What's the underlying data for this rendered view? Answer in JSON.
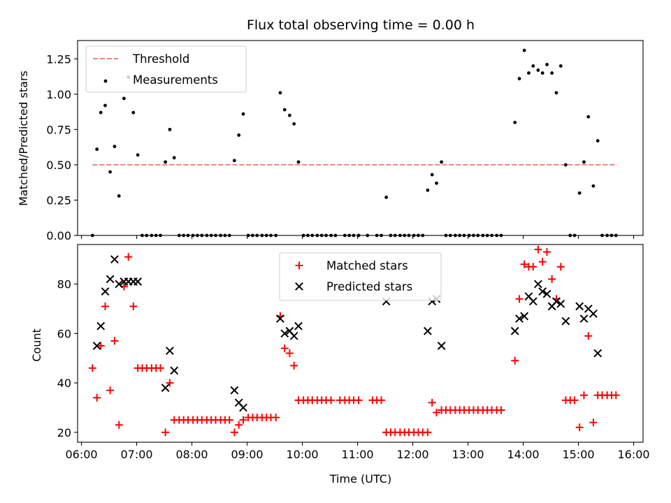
{
  "chart_data": [
    {
      "type": "scatter",
      "title": "Flux total observing time = 0.00 h",
      "ylabel": "Matched/Predicted stars",
      "xlabel": "",
      "xlim": [
        5.93,
        16.17
      ],
      "ylim": [
        0,
        1.38
      ],
      "yticks": [
        0.0,
        0.25,
        0.5,
        0.75,
        1.0,
        1.25
      ],
      "ytick_labels": [
        "0.00",
        "0.25",
        "0.50",
        "0.75",
        "1.00",
        "1.25"
      ],
      "grid": false,
      "legend_position": "top-left",
      "series": [
        {
          "name": "Threshold",
          "style": "dashed-line",
          "color": "#f08080",
          "x": [
            6.2,
            15.7
          ],
          "y": [
            0.5,
            0.5
          ]
        },
        {
          "name": "Measurements",
          "style": "dot",
          "color": "#000000",
          "points": [
            [
              6.2,
              0
            ],
            [
              6.28,
              0.61
            ],
            [
              6.35,
              0.87
            ],
            [
              6.43,
              0.92
            ],
            [
              6.52,
              0.45
            ],
            [
              6.6,
              0.63
            ],
            [
              6.68,
              0.28
            ],
            [
              6.77,
              0.97
            ],
            [
              6.85,
              1.12
            ],
            [
              6.94,
              0.87
            ],
            [
              7.02,
              0.57
            ],
            [
              7.1,
              0
            ],
            [
              7.18,
              0
            ],
            [
              7.27,
              0
            ],
            [
              7.35,
              0
            ],
            [
              7.43,
              0
            ],
            [
              7.52,
              0.52
            ],
            [
              7.6,
              0.75
            ],
            [
              7.68,
              0.55
            ],
            [
              7.77,
              0
            ],
            [
              7.85,
              0
            ],
            [
              7.93,
              0
            ],
            [
              8.02,
              0
            ],
            [
              8.1,
              0
            ],
            [
              8.18,
              0
            ],
            [
              8.27,
              0
            ],
            [
              8.35,
              0
            ],
            [
              8.43,
              0
            ],
            [
              8.52,
              0
            ],
            [
              8.6,
              0
            ],
            [
              8.68,
              0
            ],
            [
              8.77,
              0.53
            ],
            [
              8.85,
              0.71
            ],
            [
              8.93,
              0.86
            ],
            [
              9.02,
              0
            ],
            [
              9.1,
              0
            ],
            [
              9.18,
              0
            ],
            [
              9.27,
              0
            ],
            [
              9.35,
              0
            ],
            [
              9.43,
              0
            ],
            [
              9.52,
              0
            ],
            [
              9.6,
              1.01
            ],
            [
              9.68,
              0.89
            ],
            [
              9.77,
              0.85
            ],
            [
              9.85,
              0.79
            ],
            [
              9.93,
              0.52
            ],
            [
              10.02,
              0
            ],
            [
              10.1,
              0
            ],
            [
              10.18,
              0
            ],
            [
              10.27,
              0
            ],
            [
              10.35,
              0
            ],
            [
              10.43,
              0
            ],
            [
              10.52,
              0
            ],
            [
              10.6,
              0
            ],
            [
              10.77,
              0
            ],
            [
              10.85,
              0
            ],
            [
              10.93,
              0
            ],
            [
              11.02,
              0
            ],
            [
              11.18,
              0
            ],
            [
              11.35,
              0
            ],
            [
              11.43,
              0
            ],
            [
              11.52,
              0.27
            ],
            [
              11.6,
              0
            ],
            [
              11.68,
              0
            ],
            [
              11.77,
              0
            ],
            [
              11.85,
              0
            ],
            [
              11.93,
              0
            ],
            [
              12.02,
              0
            ],
            [
              12.1,
              0
            ],
            [
              12.18,
              0
            ],
            [
              12.27,
              0.32
            ],
            [
              12.35,
              0.43
            ],
            [
              12.43,
              0.37
            ],
            [
              12.52,
              0.52
            ],
            [
              12.6,
              0
            ],
            [
              12.68,
              0
            ],
            [
              12.77,
              0
            ],
            [
              12.85,
              0
            ],
            [
              12.93,
              0
            ],
            [
              13.02,
              0
            ],
            [
              13.1,
              0
            ],
            [
              13.18,
              0
            ],
            [
              13.27,
              0
            ],
            [
              13.35,
              0
            ],
            [
              13.43,
              0
            ],
            [
              13.52,
              0
            ],
            [
              13.6,
              0
            ],
            [
              13.85,
              0.8
            ],
            [
              13.93,
              1.11
            ],
            [
              14.02,
              1.31
            ],
            [
              14.1,
              1.15
            ],
            [
              14.18,
              1.2
            ],
            [
              14.27,
              1.17
            ],
            [
              14.35,
              1.15
            ],
            [
              14.43,
              1.21
            ],
            [
              14.52,
              1.15
            ],
            [
              14.6,
              1.01
            ],
            [
              14.68,
              1.2
            ],
            [
              14.77,
              0.5
            ],
            [
              14.85,
              0
            ],
            [
              14.93,
              0
            ],
            [
              15.02,
              0.3
            ],
            [
              15.1,
              0.52
            ],
            [
              15.18,
              0.84
            ],
            [
              15.27,
              0.35
            ],
            [
              15.35,
              0.67
            ],
            [
              15.43,
              0
            ],
            [
              15.52,
              0
            ],
            [
              15.6,
              0
            ],
            [
              15.68,
              0
            ]
          ]
        }
      ]
    },
    {
      "type": "scatter",
      "title": "",
      "ylabel": "Count",
      "xlabel": "Time (UTC)",
      "xlim": [
        5.93,
        16.17
      ],
      "ylim": [
        16,
        96
      ],
      "xticks": [
        6,
        7,
        8,
        9,
        10,
        11,
        12,
        13,
        14,
        15,
        16
      ],
      "xtick_labels": [
        "06:00",
        "07:00",
        "08:00",
        "09:00",
        "10:00",
        "11:00",
        "12:00",
        "13:00",
        "14:00",
        "15:00",
        "16:00"
      ],
      "yticks": [
        20,
        40,
        60,
        80
      ],
      "ytick_labels": [
        "20",
        "40",
        "60",
        "80"
      ],
      "grid": false,
      "legend_position": "top-center",
      "series": [
        {
          "name": "Matched stars",
          "marker": "plus",
          "color": "#ff0000",
          "points": [
            [
              6.2,
              46
            ],
            [
              6.28,
              34
            ],
            [
              6.35,
              55
            ],
            [
              6.43,
              71
            ],
            [
              6.52,
              37
            ],
            [
              6.6,
              57
            ],
            [
              6.68,
              23
            ],
            [
              6.77,
              79
            ],
            [
              6.85,
              91
            ],
            [
              6.94,
              71
            ],
            [
              7.02,
              46
            ],
            [
              7.1,
              46
            ],
            [
              7.18,
              46
            ],
            [
              7.27,
              46
            ],
            [
              7.35,
              46
            ],
            [
              7.43,
              46
            ],
            [
              7.52,
              20
            ],
            [
              7.6,
              40
            ],
            [
              7.68,
              25
            ],
            [
              7.77,
              25
            ],
            [
              7.85,
              25
            ],
            [
              7.93,
              25
            ],
            [
              8.02,
              25
            ],
            [
              8.1,
              25
            ],
            [
              8.18,
              25
            ],
            [
              8.27,
              25
            ],
            [
              8.35,
              25
            ],
            [
              8.43,
              25
            ],
            [
              8.52,
              25
            ],
            [
              8.6,
              25
            ],
            [
              8.68,
              25
            ],
            [
              8.77,
              20
            ],
            [
              8.85,
              23
            ],
            [
              8.93,
              25
            ],
            [
              9.02,
              26
            ],
            [
              9.1,
              26
            ],
            [
              9.18,
              26
            ],
            [
              9.27,
              26
            ],
            [
              9.35,
              26
            ],
            [
              9.43,
              26
            ],
            [
              9.52,
              26
            ],
            [
              9.6,
              67
            ],
            [
              9.68,
              54
            ],
            [
              9.77,
              52
            ],
            [
              9.85,
              47
            ],
            [
              9.93,
              33
            ],
            [
              10.02,
              33
            ],
            [
              10.1,
              33
            ],
            [
              10.18,
              33
            ],
            [
              10.27,
              33
            ],
            [
              10.35,
              33
            ],
            [
              10.43,
              33
            ],
            [
              10.52,
              33
            ],
            [
              10.68,
              33
            ],
            [
              10.77,
              33
            ],
            [
              10.85,
              33
            ],
            [
              10.93,
              33
            ],
            [
              11.02,
              33
            ],
            [
              11.27,
              33
            ],
            [
              11.35,
              33
            ],
            [
              11.43,
              33
            ],
            [
              11.52,
              20
            ],
            [
              11.6,
              20
            ],
            [
              11.68,
              20
            ],
            [
              11.77,
              20
            ],
            [
              11.85,
              20
            ],
            [
              11.93,
              20
            ],
            [
              12.02,
              20
            ],
            [
              12.1,
              20
            ],
            [
              12.18,
              20
            ],
            [
              12.27,
              20
            ],
            [
              12.35,
              32
            ],
            [
              12.43,
              28
            ],
            [
              12.52,
              29
            ],
            [
              12.6,
              29
            ],
            [
              12.68,
              29
            ],
            [
              12.77,
              29
            ],
            [
              12.85,
              29
            ],
            [
              12.93,
              29
            ],
            [
              13.02,
              29
            ],
            [
              13.1,
              29
            ],
            [
              13.18,
              29
            ],
            [
              13.27,
              29
            ],
            [
              13.35,
              29
            ],
            [
              13.43,
              29
            ],
            [
              13.52,
              29
            ],
            [
              13.6,
              29
            ],
            [
              13.85,
              49
            ],
            [
              13.93,
              74
            ],
            [
              14.02,
              88
            ],
            [
              14.1,
              87
            ],
            [
              14.18,
              87
            ],
            [
              14.27,
              94
            ],
            [
              14.35,
              89
            ],
            [
              14.43,
              93
            ],
            [
              14.52,
              82
            ],
            [
              14.6,
              74
            ],
            [
              14.68,
              87
            ],
            [
              14.77,
              33
            ],
            [
              14.85,
              33
            ],
            [
              14.93,
              33
            ],
            [
              15.02,
              22
            ],
            [
              15.1,
              35
            ],
            [
              15.18,
              59
            ],
            [
              15.27,
              24
            ],
            [
              15.35,
              35
            ],
            [
              15.43,
              35
            ],
            [
              15.52,
              35
            ],
            [
              15.6,
              35
            ],
            [
              15.68,
              35
            ]
          ]
        },
        {
          "name": "Predicted stars",
          "marker": "x",
          "color": "#000000",
          "points": [
            [
              6.28,
              55
            ],
            [
              6.35,
              63
            ],
            [
              6.43,
              77
            ],
            [
              6.52,
              82
            ],
            [
              6.6,
              90
            ],
            [
              6.68,
              80
            ],
            [
              6.77,
              81
            ],
            [
              6.85,
              81
            ],
            [
              6.94,
              81
            ],
            [
              7.02,
              81
            ],
            [
              7.52,
              38
            ],
            [
              7.6,
              53
            ],
            [
              7.68,
              45
            ],
            [
              8.77,
              37
            ],
            [
              8.85,
              32
            ],
            [
              8.93,
              30
            ],
            [
              9.6,
              66
            ],
            [
              9.68,
              60
            ],
            [
              9.77,
              61
            ],
            [
              9.85,
              59
            ],
            [
              9.93,
              63
            ],
            [
              11.52,
              73
            ],
            [
              12.27,
              61
            ],
            [
              12.35,
              73
            ],
            [
              12.43,
              74
            ],
            [
              12.52,
              55
            ],
            [
              13.85,
              61
            ],
            [
              13.93,
              66
            ],
            [
              14.02,
              67
            ],
            [
              14.1,
              75
            ],
            [
              14.18,
              73
            ],
            [
              14.27,
              80
            ],
            [
              14.35,
              77
            ],
            [
              14.43,
              76
            ],
            [
              14.52,
              71
            ],
            [
              14.6,
              73
            ],
            [
              14.68,
              72
            ],
            [
              14.77,
              65
            ],
            [
              15.02,
              71
            ],
            [
              15.1,
              66
            ],
            [
              15.18,
              70
            ],
            [
              15.27,
              68
            ],
            [
              15.35,
              52
            ]
          ]
        }
      ]
    }
  ]
}
